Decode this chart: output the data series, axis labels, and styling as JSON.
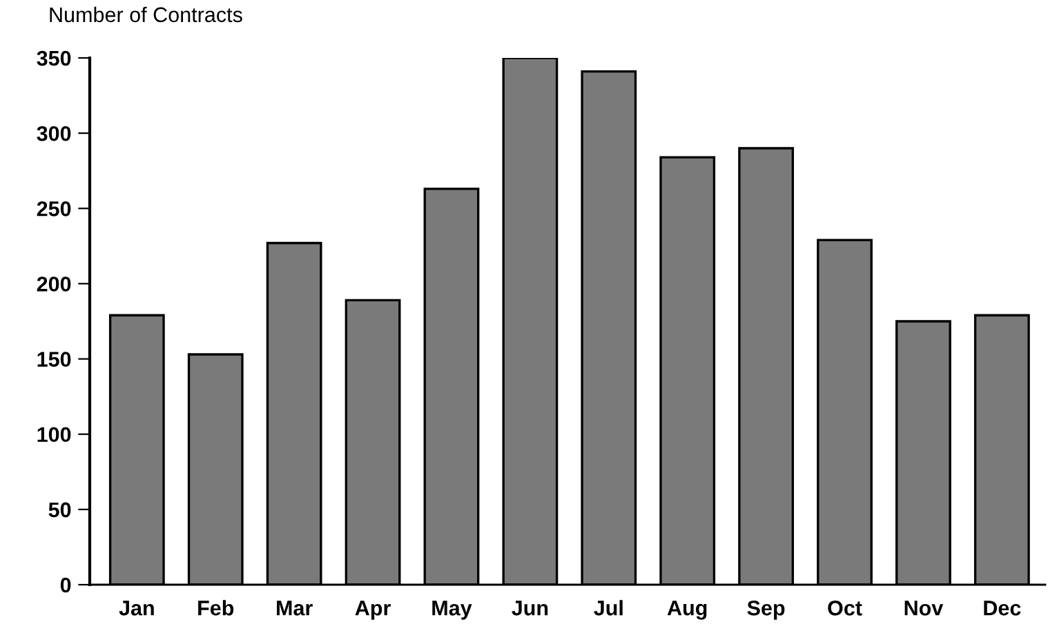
{
  "chart_data": {
    "type": "bar",
    "ylabel": "Number of Contracts",
    "categories": [
      "Jan",
      "Feb",
      "Mar",
      "Apr",
      "May",
      "Jun",
      "Jul",
      "Aug",
      "Sep",
      "Oct",
      "Nov",
      "Dec"
    ],
    "values": [
      179,
      153,
      227,
      189,
      263,
      350,
      341,
      284,
      290,
      229,
      175,
      179
    ],
    "color": "#7a7a7a",
    "ylim": [
      0,
      350
    ],
    "yticks": [
      0,
      50,
      100,
      150,
      200,
      250,
      300,
      350
    ],
    "grid": false,
    "legend": false
  }
}
